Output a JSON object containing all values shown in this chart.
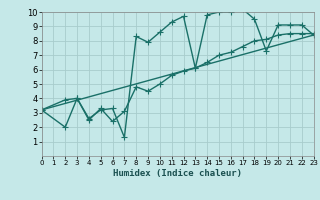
{
  "background_color": "#c5e8e8",
  "grid_color": "#a8cccc",
  "line_color": "#1a7068",
  "xlabel": "Humidex (Indice chaleur)",
  "xlim": [
    0,
    23
  ],
  "ylim": [
    0,
    10
  ],
  "xticks": [
    0,
    1,
    2,
    3,
    4,
    5,
    6,
    7,
    8,
    9,
    10,
    11,
    12,
    13,
    14,
    15,
    16,
    17,
    18,
    19,
    20,
    21,
    22,
    23
  ],
  "yticks": [
    1,
    2,
    3,
    4,
    5,
    6,
    7,
    8,
    9,
    10
  ],
  "curve1_x": [
    0,
    2,
    3,
    4,
    5,
    6,
    7,
    8,
    9,
    10,
    11,
    12,
    13,
    14,
    15,
    16,
    17,
    18,
    19,
    20,
    21,
    22,
    23
  ],
  "curve1_y": [
    3.2,
    3.9,
    4.0,
    2.6,
    3.2,
    3.3,
    1.3,
    8.3,
    7.9,
    8.6,
    9.3,
    9.7,
    6.1,
    9.8,
    10.0,
    10.0,
    10.2,
    9.5,
    7.3,
    9.1,
    9.1,
    9.1,
    8.4
  ],
  "curve2_x": [
    0,
    2,
    3,
    4,
    5,
    6,
    7,
    8,
    9,
    10,
    11,
    12,
    13,
    14,
    15,
    16,
    17,
    18,
    19,
    20,
    21,
    22,
    23
  ],
  "curve2_y": [
    3.2,
    2.0,
    4.0,
    2.5,
    3.3,
    2.4,
    3.1,
    4.8,
    4.5,
    5.0,
    5.6,
    5.9,
    6.1,
    6.5,
    7.0,
    7.2,
    7.6,
    8.0,
    8.1,
    8.4,
    8.5,
    8.5,
    8.5
  ],
  "curve3_x": [
    0,
    23
  ],
  "curve3_y": [
    3.2,
    8.4
  ],
  "marker": "+",
  "marker_size": 4,
  "line_width": 1.0
}
